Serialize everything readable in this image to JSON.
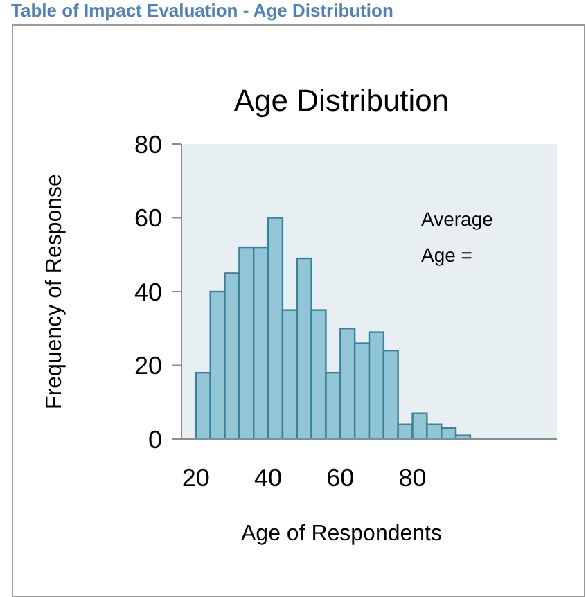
{
  "chart_data": {
    "type": "histogram",
    "title": "Age Distribution",
    "xlabel": "Age of Respondents",
    "ylabel": "Frequency of Response",
    "bins": [
      20,
      24,
      28,
      32,
      36,
      40,
      44,
      48,
      52,
      56,
      60,
      64,
      68,
      72,
      76,
      80,
      84,
      88,
      92,
      96
    ],
    "values": [
      18,
      40,
      45,
      52,
      52,
      60,
      35,
      49,
      35,
      18,
      30,
      26,
      29,
      24,
      4,
      7,
      4,
      3,
      1
    ],
    "color": "#92c5d6",
    "xlim": [
      16,
      120
    ],
    "xticks": [
      20,
      40,
      60,
      80
    ],
    "ylim": [
      0,
      80
    ],
    "yticks": [
      0,
      20,
      40,
      60,
      80
    ],
    "grid": false,
    "annotations": [
      "Table of Impact Evaluation - Age Distribution",
      "Average Age ="
    ]
  }
}
